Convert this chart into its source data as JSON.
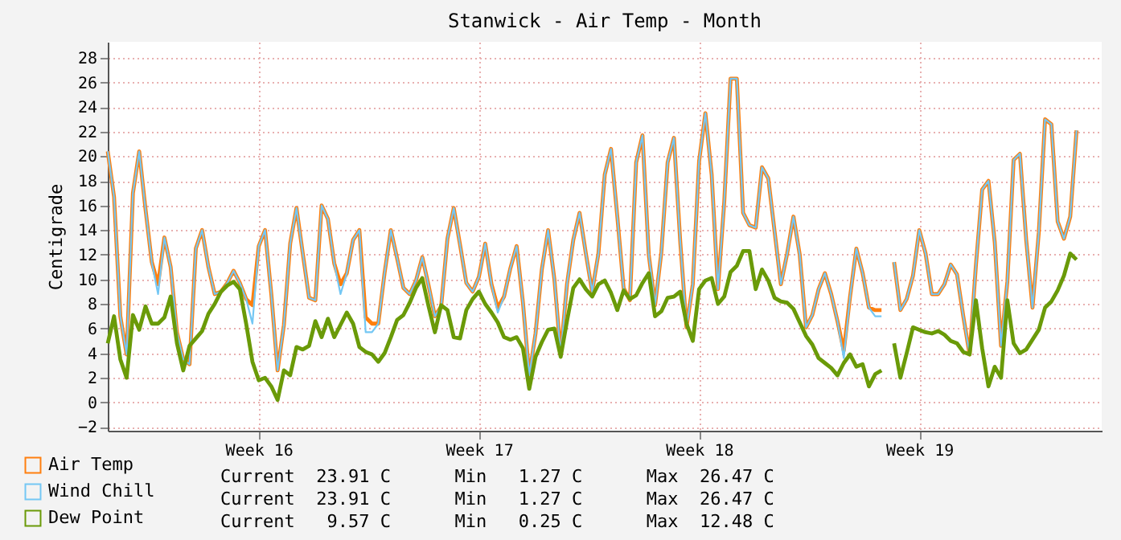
{
  "chart_data": {
    "type": "line",
    "title": "Stanwick - Air Temp - Month",
    "ylabel": "Centigrade",
    "categories": [
      null,
      null,
      null,
      null,
      null,
      null,
      null,
      null,
      null,
      null,
      null,
      null,
      null,
      null,
      null,
      null,
      null,
      null,
      null,
      null,
      null,
      null,
      null,
      null,
      "Week 16",
      null,
      null,
      null,
      null,
      null,
      null,
      null,
      null,
      null,
      null,
      null,
      null,
      null,
      null,
      null,
      null,
      null,
      null,
      null,
      null,
      null,
      null,
      null,
      null,
      null,
      null,
      null,
      null,
      null,
      null,
      null,
      null,
      null,
      null,
      "Week 17",
      null,
      null,
      null,
      null,
      null,
      null,
      null,
      null,
      null,
      null,
      null,
      null,
      null,
      null,
      null,
      null,
      null,
      null,
      null,
      null,
      null,
      null,
      null,
      null,
      null,
      null,
      null,
      null,
      null,
      null,
      null,
      null,
      null,
      null,
      "Week 18",
      null,
      null,
      null,
      null,
      null,
      null,
      null,
      null,
      null,
      null,
      null,
      null,
      null,
      null,
      null,
      null,
      null,
      null,
      null,
      null,
      null,
      null,
      null,
      null,
      null,
      null,
      null,
      null,
      null,
      null,
      null,
      null,
      null,
      null,
      "Week 19",
      null,
      null,
      null,
      null,
      null,
      null,
      null,
      null,
      null,
      null,
      null,
      null,
      null,
      null,
      null,
      null,
      null,
      null,
      null,
      null,
      null,
      null,
      null,
      null,
      null,
      null,
      null,
      null,
      null
    ],
    "ylim": [
      -2.3,
      29.3
    ],
    "yticks": [
      -2,
      0,
      2,
      4,
      6,
      8,
      10,
      12,
      14,
      16,
      18,
      20,
      22,
      24,
      26,
      28
    ],
    "grid": true,
    "legend": "bottom",
    "annotations": [
      "Current  23.91 C      Min   1.27 C      Max  26.47 C",
      "Current  23.91 C      Min   1.27 C      Max  26.47 C",
      "Current   9.57 C      Min   0.25 C      Max  12.48 C"
    ],
    "series": [
      {
        "name": "Air Temp",
        "color": "#ff7f0e",
        "values": [
          20.4,
          16.7,
          7,
          3.9,
          17,
          20.4,
          15.7,
          11.4,
          9.6,
          13.4,
          11,
          5.7,
          3.5,
          3.1,
          12.5,
          14,
          11,
          8.8,
          9,
          9.7,
          10.7,
          9.7,
          8.4,
          7.9,
          12.7,
          14,
          8.8,
          2.6,
          6.3,
          12.9,
          15.8,
          12.1,
          8.5,
          8.3,
          16,
          14.9,
          11.3,
          9.6,
          10.5,
          13.2,
          14,
          6.9,
          6.4,
          6.4,
          10.5,
          14,
          11.7,
          9.3,
          8.8,
          9.9,
          11.8,
          9.5,
          7,
          7.8,
          13.3,
          15.8,
          12.8,
          9.7,
          9,
          10.2,
          12.9,
          9.6,
          7.7,
          8.6,
          10.9,
          12.7,
          8.1,
          2.2,
          5.6,
          10.8,
          14,
          10,
          3.9,
          9.6,
          13.2,
          15.4,
          12.1,
          9,
          12.1,
          18.5,
          20.6,
          15.1,
          9.3,
          8.3,
          19.5,
          21.7,
          12,
          7.9,
          12.2,
          19.5,
          21.5,
          13.1,
          6.1,
          9.6,
          19.6,
          23.5,
          18.5,
          9.2,
          16.3,
          26.3,
          26.3,
          15.4,
          14.4,
          14.2,
          19.1,
          18.2,
          13.9,
          9.6,
          12.1,
          15.1,
          12,
          6.1,
          7.1,
          9.2,
          10.5,
          8.8,
          6.6,
          4.2,
          8.6,
          12.5,
          10.5,
          7.7,
          7.5,
          7.5,
          null,
          11.4,
          7.5,
          8.4,
          10.3,
          14,
          12.1,
          8.8,
          8.8,
          9.6,
          11.2,
          10.4,
          7,
          3.9,
          11.1,
          17.3,
          18,
          13,
          4.6,
          9.8,
          19.7,
          20.2,
          13.2,
          7.7,
          13.8,
          23,
          22.6,
          14.7,
          13.3,
          15.1,
          22.1,
          null,
          null,
          null,
          null
        ]
      },
      {
        "name": "Wind Chill",
        "color": "#74c7f4",
        "values": [
          20.4,
          16.7,
          7,
          3.9,
          17,
          20.4,
          15.7,
          11.4,
          8.8,
          13.4,
          11,
          5.7,
          3.5,
          3.1,
          12.5,
          14,
          11,
          8.8,
          9,
          9.7,
          10.7,
          9.7,
          8.4,
          6.4,
          12.7,
          14,
          8.8,
          2.6,
          6.3,
          12.9,
          15.8,
          12.1,
          8.5,
          8.3,
          16,
          14.9,
          11.3,
          8.8,
          10.5,
          13.2,
          14,
          5.7,
          5.7,
          6.4,
          10.5,
          14,
          11.7,
          9.3,
          8.8,
          9.9,
          11.8,
          9.5,
          7,
          7.8,
          13.3,
          15.8,
          12.8,
          9.7,
          9,
          10.2,
          12.9,
          9.6,
          7.3,
          8.6,
          10.9,
          12.7,
          8.1,
          2.2,
          5.6,
          10.8,
          14,
          10,
          3.9,
          9.6,
          13.2,
          15.4,
          12.1,
          9,
          12.1,
          18.5,
          20.6,
          15.1,
          9.3,
          8.3,
          19.5,
          21.7,
          12,
          7.9,
          12.2,
          19.5,
          21.5,
          13.1,
          6.1,
          9.6,
          19.6,
          23.5,
          18.5,
          9.2,
          16.3,
          26.3,
          26.3,
          15.4,
          14.4,
          14.2,
          19.1,
          18.2,
          13.9,
          9.6,
          12.1,
          15.1,
          12,
          6.1,
          7.1,
          9.2,
          10.5,
          8.8,
          6.6,
          3.6,
          8.6,
          12.5,
          10.5,
          7.7,
          7.0,
          7.0,
          null,
          11.4,
          7.5,
          8.4,
          10.3,
          14,
          12.1,
          8.8,
          8.8,
          9.6,
          11.2,
          10.4,
          7,
          3.9,
          11.1,
          17.3,
          18,
          13,
          4.6,
          9.8,
          19.7,
          20.2,
          13.2,
          7.7,
          13.8,
          23,
          22.6,
          14.7,
          13.3,
          15.1,
          22.1,
          null,
          null,
          null,
          null
        ]
      },
      {
        "name": "Dew Point",
        "color": "#6a9a08",
        "values": [
          4.8,
          7,
          3.5,
          2,
          7.1,
          5.9,
          7.8,
          6.4,
          6.4,
          6.9,
          8.6,
          4.8,
          2.6,
          4.6,
          5.2,
          5.8,
          7.2,
          8,
          9,
          9.5,
          9.8,
          9.2,
          6.4,
          3.3,
          1.8,
          2,
          1.3,
          0.2,
          2.6,
          2.2,
          4.5,
          4.3,
          4.6,
          6.6,
          5.3,
          6.8,
          5.3,
          6.3,
          7.3,
          6.4,
          4.5,
          4.1,
          3.9,
          3.3,
          4,
          5.3,
          6.7,
          7.1,
          8.1,
          9.3,
          10.1,
          7.8,
          5.7,
          7.9,
          7.5,
          5.3,
          5.2,
          7.5,
          8.4,
          9,
          8,
          7.3,
          6.5,
          5.3,
          5.1,
          5.3,
          4.4,
          1.1,
          3.7,
          4.9,
          5.9,
          6,
          3.7,
          6.6,
          9.3,
          10,
          9.2,
          8.6,
          9.6,
          9.9,
          8.9,
          7.5,
          9.1,
          8.4,
          8.7,
          9.7,
          10.5,
          7,
          7.4,
          8.5,
          8.6,
          9,
          6.4,
          5,
          9.2,
          9.9,
          10.1,
          8,
          8.6,
          10.6,
          11.1,
          12.3,
          12.3,
          9.2,
          10.8,
          9.9,
          8.5,
          8.2,
          8.1,
          7.6,
          6.5,
          5.4,
          4.7,
          3.6,
          3.2,
          2.8,
          2.2,
          3.2,
          3.9,
          2.9,
          3.1,
          1.3,
          2.3,
          2.6,
          null,
          4.8,
          2,
          4,
          6.1,
          5.9,
          5.7,
          5.6,
          5.8,
          5.5,
          5,
          4.8,
          4.1,
          3.9,
          8.3,
          4.4,
          1.3,
          2.9,
          2,
          8.3,
          4.8,
          4,
          4.3,
          5.1,
          5.9,
          7.7,
          8.2,
          9.1,
          10.3,
          12.1,
          11.6,
          null,
          null,
          null,
          null
        ]
      }
    ]
  }
}
